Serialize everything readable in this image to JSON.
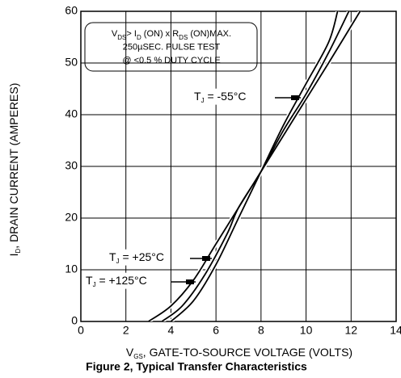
{
  "chart_data": {
    "type": "line",
    "ylabel": [
      {
        "t": "I"
      },
      {
        "t": "D",
        "sub": true
      },
      {
        "t": ", DRAIN CURRENT (AMPERES)"
      }
    ],
    "xlabel": [
      {
        "t": "V"
      },
      {
        "t": "GS",
        "sub": true
      },
      {
        "t": ", GATE-TO-SOURCE VOLTAGE (VOLTS)"
      }
    ],
    "caption": "Figure 2, Typical Transfer Characteristics",
    "note": [
      [
        {
          "t": "V"
        },
        {
          "t": "DS",
          "sub": true
        },
        {
          "t": "> I"
        },
        {
          "t": "D",
          "sub": true
        },
        {
          "t": " (ON) x  R"
        },
        {
          "t": "DS",
          "sub": true
        },
        {
          "t": " (ON)MAX."
        }
      ],
      [
        {
          "t": "250µSEC. PULSE TEST"
        }
      ],
      [
        {
          "t": "@ <0.5 % DUTY CYCLE"
        }
      ]
    ],
    "xlim": [
      0,
      14
    ],
    "xticks": [
      0,
      2,
      4,
      6,
      8,
      10,
      12,
      14
    ],
    "ylim": [
      0,
      60
    ],
    "yticks": [
      0,
      10,
      20,
      30,
      40,
      50,
      60
    ],
    "grid": true,
    "color": "#000000",
    "series": [
      {
        "label": [
          {
            "t": "T"
          },
          {
            "t": "J",
            "sub": true
          },
          {
            "t": " = -55°C"
          }
        ],
        "x": [
          4,
          5,
          6,
          7,
          8,
          9,
          10,
          11,
          11.4
        ],
        "values": [
          0,
          4,
          11,
          20,
          29,
          38,
          46,
          54,
          60
        ]
      },
      {
        "label": [
          {
            "t": "T"
          },
          {
            "t": "J",
            "sub": true
          },
          {
            "t": " = +25°C"
          }
        ],
        "x": [
          3.6,
          4.5,
          5.5,
          6.5,
          7,
          8,
          9,
          10,
          11,
          11.9
        ],
        "values": [
          0,
          3,
          9,
          17,
          22,
          29,
          37,
          44,
          52,
          60
        ]
      },
      {
        "label": [
          {
            "t": "T"
          },
          {
            "t": "J",
            "sub": true
          },
          {
            "t": " = +125°C"
          }
        ],
        "x": [
          3,
          4,
          5,
          6,
          7,
          8,
          9,
          10,
          11,
          12.4
        ],
        "values": [
          0,
          3,
          8,
          15,
          22,
          29,
          36,
          43,
          50,
          60
        ]
      }
    ]
  }
}
